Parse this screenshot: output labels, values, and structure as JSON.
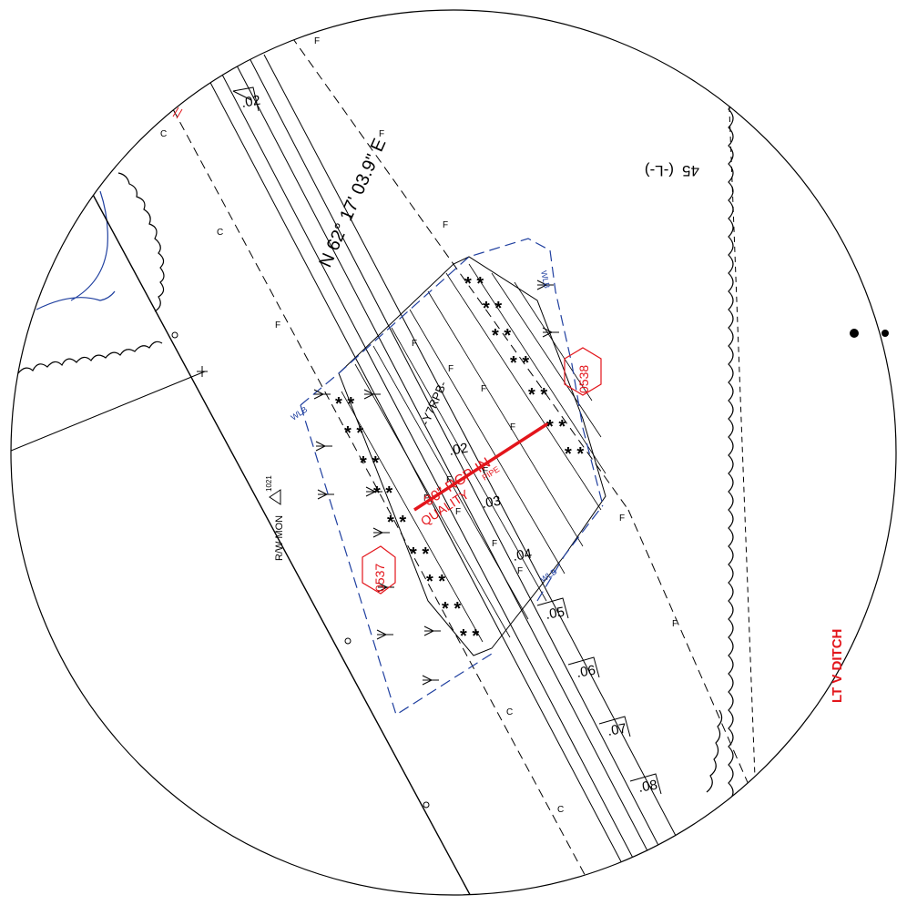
{
  "bearing": "N 62° 17' 03.9\" E",
  "alignment_label": "-Y7RPB-",
  "station_label": "45",
  "station_suffix": "(-L-)",
  "wetland_boundary_label": "WLB",
  "right_of_way_monument": "R/W MON",
  "monument_number": "1021",
  "pipe_label_line1": "30\" RCP-IN",
  "pipe_label_line2": "QUALITY",
  "pipe_label_line3": "PIPE",
  "ditch_label": "LT V DITCH",
  "site_id_1": "0537",
  "site_id_2": "0538",
  "fill_mark": "F",
  "cut_mark": "C",
  "station_ticks": [
    ".02",
    ".02",
    ".03",
    ".04",
    ".05",
    ".06",
    ".07",
    ".08"
  ],
  "colors": {
    "linework": "#000000",
    "wetland_boundary": "#1f3f9f",
    "annotation_red": "#e3151b"
  }
}
